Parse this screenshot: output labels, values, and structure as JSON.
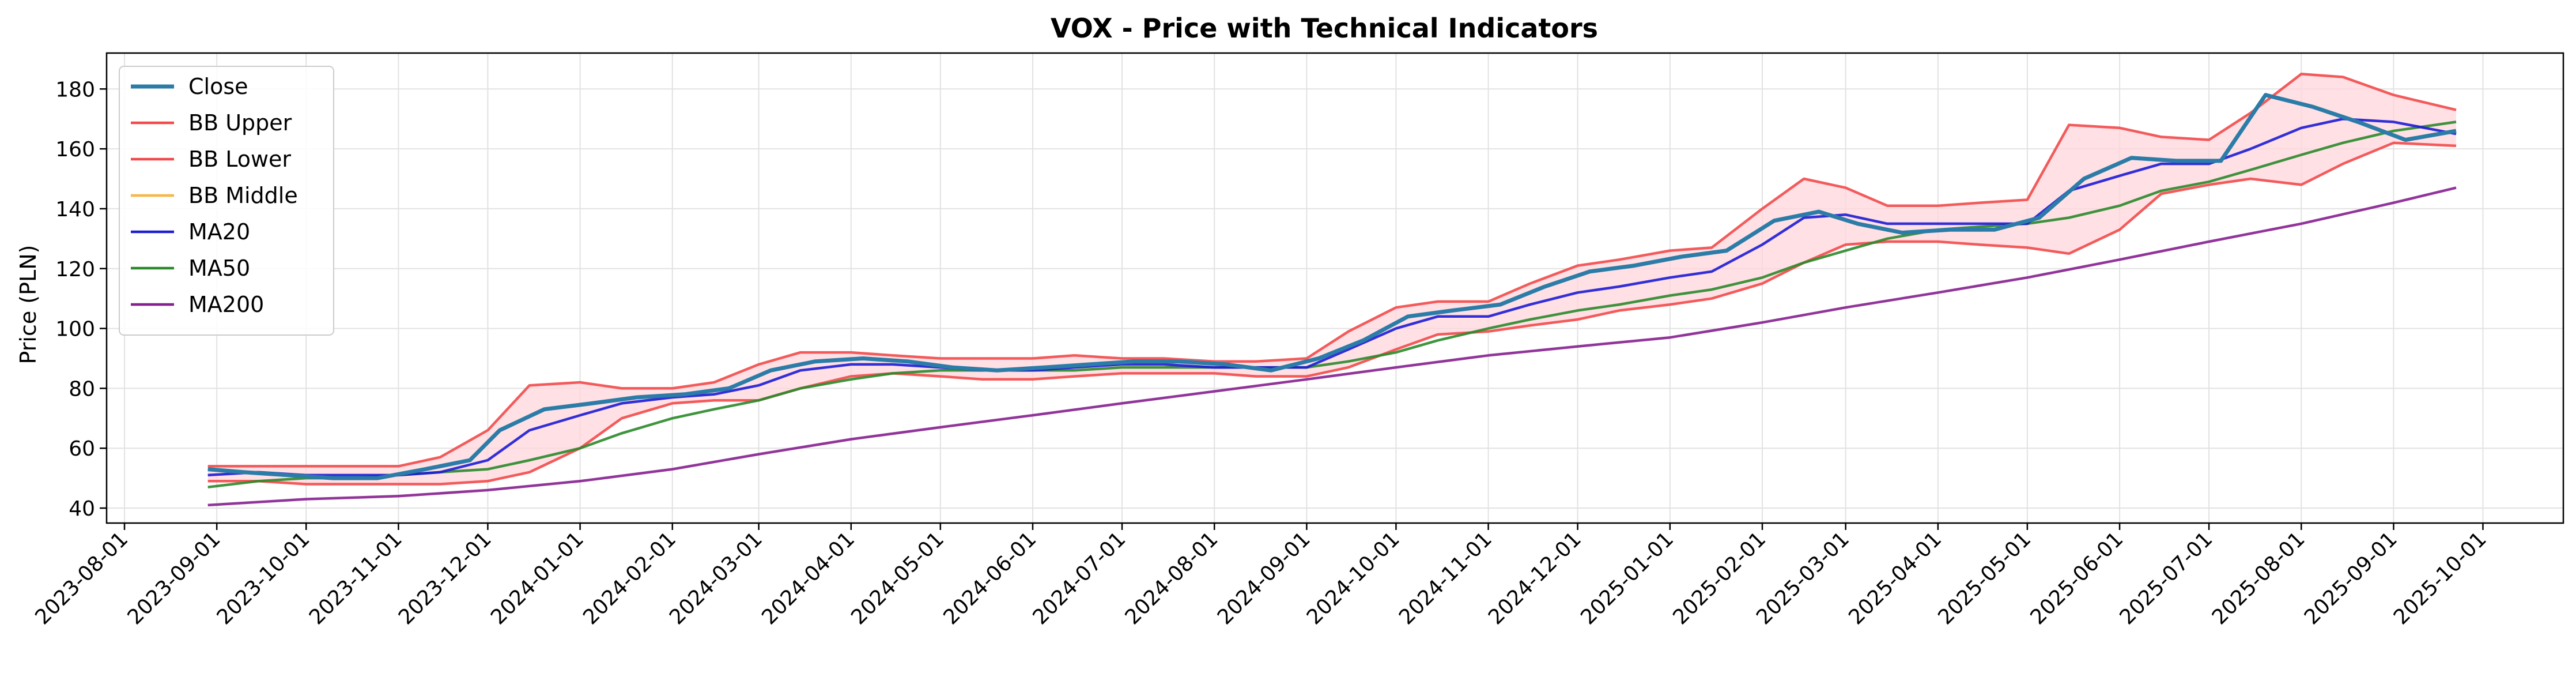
{
  "chart_data": {
    "type": "line",
    "title": "VOX - Price with Technical Indicators",
    "xlabel": "",
    "ylabel": "Price (PLN)",
    "ylim": [
      35,
      192
    ],
    "yticks": [
      40,
      60,
      80,
      100,
      120,
      140,
      160,
      180
    ],
    "xlim": [
      "2023-07-26",
      "2025-10-28"
    ],
    "xticks": [
      "2023-08-01",
      "2023-09-01",
      "2023-10-01",
      "2023-11-01",
      "2023-12-01",
      "2024-01-01",
      "2024-02-01",
      "2024-03-01",
      "2024-04-01",
      "2024-05-01",
      "2024-06-01",
      "2024-07-01",
      "2024-08-01",
      "2024-09-01",
      "2024-10-01",
      "2024-11-01",
      "2024-12-01",
      "2025-01-01",
      "2025-02-01",
      "2025-03-01",
      "2025-04-01",
      "2025-05-01",
      "2025-06-01",
      "2025-07-01",
      "2025-08-01",
      "2025-09-01",
      "2025-10-01"
    ],
    "grid": true,
    "legend_position": "top-left",
    "band_fill_color": "#ffd6dc",
    "series": [
      {
        "name": "Close",
        "color": "#2c7ca8",
        "style": "solid",
        "x": [
          "2023-08-29",
          "2023-09-10",
          "2023-09-25",
          "2023-10-10",
          "2023-10-25",
          "2023-11-10",
          "2023-11-25",
          "2023-12-05",
          "2023-12-20",
          "2024-01-05",
          "2024-01-20",
          "2024-02-05",
          "2024-02-20",
          "2024-03-05",
          "2024-03-20",
          "2024-04-05",
          "2024-04-20",
          "2024-05-05",
          "2024-05-20",
          "2024-06-05",
          "2024-06-20",
          "2024-07-05",
          "2024-07-20",
          "2024-08-05",
          "2024-08-20",
          "2024-09-05",
          "2024-09-20",
          "2024-10-05",
          "2024-10-20",
          "2024-11-05",
          "2024-11-20",
          "2024-12-05",
          "2024-12-20",
          "2025-01-05",
          "2025-01-20",
          "2025-02-05",
          "2025-02-20",
          "2025-03-05",
          "2025-03-20",
          "2025-04-05",
          "2025-04-20",
          "2025-05-05",
          "2025-05-20",
          "2025-06-05",
          "2025-06-20",
          "2025-07-05",
          "2025-07-20",
          "2025-08-05",
          "2025-08-20",
          "2025-09-05",
          "2025-09-22"
        ],
        "values": [
          53,
          52,
          51,
          50,
          50,
          53,
          56,
          66,
          73,
          75,
          77,
          78,
          80,
          86,
          89,
          90,
          89,
          87,
          86,
          87,
          88,
          89,
          89,
          88,
          86,
          90,
          96,
          104,
          106,
          108,
          114,
          119,
          121,
          124,
          126,
          136,
          139,
          135,
          132,
          133,
          133,
          137,
          150,
          157,
          156,
          156,
          178,
          174,
          169,
          163,
          166
        ]
      },
      {
        "name": "BB Upper",
        "color": "#f24a4a",
        "style": "solid",
        "x": [
          "2023-08-29",
          "2023-09-15",
          "2023-10-01",
          "2023-10-15",
          "2023-11-01",
          "2023-11-15",
          "2023-12-01",
          "2023-12-15",
          "2024-01-01",
          "2024-01-15",
          "2024-02-01",
          "2024-02-15",
          "2024-03-01",
          "2024-03-15",
          "2024-04-01",
          "2024-04-15",
          "2024-05-01",
          "2024-05-15",
          "2024-06-01",
          "2024-06-15",
          "2024-07-01",
          "2024-07-15",
          "2024-08-01",
          "2024-08-15",
          "2024-09-01",
          "2024-09-15",
          "2024-10-01",
          "2024-10-15",
          "2024-11-01",
          "2024-11-15",
          "2024-12-01",
          "2024-12-15",
          "2025-01-01",
          "2025-01-15",
          "2025-02-01",
          "2025-02-15",
          "2025-03-01",
          "2025-03-15",
          "2025-04-01",
          "2025-04-15",
          "2025-05-01",
          "2025-05-15",
          "2025-06-01",
          "2025-06-15",
          "2025-07-01",
          "2025-07-15",
          "2025-08-01",
          "2025-08-15",
          "2025-09-01",
          "2025-09-22"
        ],
        "values": [
          54,
          54,
          54,
          54,
          54,
          57,
          66,
          81,
          82,
          80,
          80,
          82,
          88,
          92,
          92,
          91,
          90,
          90,
          90,
          91,
          90,
          90,
          89,
          89,
          90,
          99,
          107,
          109,
          109,
          115,
          121,
          123,
          126,
          127,
          140,
          150,
          147,
          141,
          141,
          142,
          143,
          168,
          167,
          164,
          163,
          172,
          185,
          184,
          178,
          173
        ]
      },
      {
        "name": "BB Lower",
        "color": "#f24a4a",
        "style": "solid",
        "x": [
          "2023-08-29",
          "2023-09-15",
          "2023-10-01",
          "2023-10-15",
          "2023-11-01",
          "2023-11-15",
          "2023-12-01",
          "2023-12-15",
          "2024-01-01",
          "2024-01-15",
          "2024-02-01",
          "2024-02-15",
          "2024-03-01",
          "2024-03-15",
          "2024-04-01",
          "2024-04-15",
          "2024-05-01",
          "2024-05-15",
          "2024-06-01",
          "2024-06-15",
          "2024-07-01",
          "2024-07-15",
          "2024-08-01",
          "2024-08-15",
          "2024-09-01",
          "2024-09-15",
          "2024-10-01",
          "2024-10-15",
          "2024-11-01",
          "2024-11-15",
          "2024-12-01",
          "2024-12-15",
          "2025-01-01",
          "2025-01-15",
          "2025-02-01",
          "2025-02-15",
          "2025-03-01",
          "2025-03-15",
          "2025-04-01",
          "2025-04-15",
          "2025-05-01",
          "2025-05-15",
          "2025-06-01",
          "2025-06-15",
          "2025-07-01",
          "2025-07-15",
          "2025-08-01",
          "2025-08-15",
          "2025-09-01",
          "2025-09-22"
        ],
        "values": [
          49,
          49,
          48,
          48,
          48,
          48,
          49,
          52,
          60,
          70,
          75,
          76,
          76,
          80,
          84,
          85,
          84,
          83,
          83,
          84,
          85,
          85,
          85,
          84,
          84,
          87,
          93,
          98,
          99,
          101,
          103,
          106,
          108,
          110,
          115,
          122,
          128,
          129,
          129,
          128,
          127,
          125,
          133,
          145,
          148,
          150,
          148,
          155,
          162,
          161
        ]
      },
      {
        "name": "BB Middle",
        "color": "#f5b84a",
        "style": "solid",
        "x": [],
        "values": []
      },
      {
        "name": "MA20",
        "color": "#1c1cd6",
        "style": "solid",
        "x": [
          "2023-08-29",
          "2023-09-15",
          "2023-10-01",
          "2023-10-15",
          "2023-11-01",
          "2023-11-15",
          "2023-12-01",
          "2023-12-15",
          "2024-01-01",
          "2024-01-15",
          "2024-02-01",
          "2024-02-15",
          "2024-03-01",
          "2024-03-15",
          "2024-04-01",
          "2024-04-15",
          "2024-05-01",
          "2024-05-15",
          "2024-06-01",
          "2024-06-15",
          "2024-07-01",
          "2024-07-15",
          "2024-08-01",
          "2024-08-15",
          "2024-09-01",
          "2024-09-15",
          "2024-10-01",
          "2024-10-15",
          "2024-11-01",
          "2024-11-15",
          "2024-12-01",
          "2024-12-15",
          "2025-01-01",
          "2025-01-15",
          "2025-02-01",
          "2025-02-15",
          "2025-03-01",
          "2025-03-15",
          "2025-04-01",
          "2025-04-15",
          "2025-05-01",
          "2025-05-15",
          "2025-06-01",
          "2025-06-15",
          "2025-07-01",
          "2025-07-15",
          "2025-08-01",
          "2025-08-15",
          "2025-09-01",
          "2025-09-22"
        ],
        "values": [
          51,
          52,
          51,
          51,
          51,
          52,
          56,
          66,
          71,
          75,
          77,
          78,
          81,
          86,
          88,
          88,
          87,
          86,
          86,
          87,
          88,
          88,
          87,
          87,
          87,
          93,
          100,
          104,
          104,
          108,
          112,
          114,
          117,
          119,
          128,
          137,
          138,
          135,
          135,
          135,
          135,
          146,
          151,
          155,
          155,
          160,
          167,
          170,
          169,
          165
        ]
      },
      {
        "name": "MA50",
        "color": "#2a8a2a",
        "style": "solid",
        "x": [
          "2023-08-29",
          "2023-09-15",
          "2023-10-01",
          "2023-10-15",
          "2023-11-01",
          "2023-11-15",
          "2023-12-01",
          "2023-12-15",
          "2024-01-01",
          "2024-01-15",
          "2024-02-01",
          "2024-02-15",
          "2024-03-01",
          "2024-03-15",
          "2024-04-01",
          "2024-04-15",
          "2024-05-01",
          "2024-05-15",
          "2024-06-01",
          "2024-06-15",
          "2024-07-01",
          "2024-07-15",
          "2024-08-01",
          "2024-08-15",
          "2024-09-01",
          "2024-09-15",
          "2024-10-01",
          "2024-10-15",
          "2024-11-01",
          "2024-11-15",
          "2024-12-01",
          "2024-12-15",
          "2025-01-01",
          "2025-01-15",
          "2025-02-01",
          "2025-02-15",
          "2025-03-01",
          "2025-03-15",
          "2025-04-01",
          "2025-04-15",
          "2025-05-01",
          "2025-05-15",
          "2025-06-01",
          "2025-06-15",
          "2025-07-01",
          "2025-07-15",
          "2025-08-01",
          "2025-08-15",
          "2025-09-01",
          "2025-09-22"
        ],
        "values": [
          47,
          49,
          50,
          50,
          51,
          52,
          53,
          56,
          60,
          65,
          70,
          73,
          76,
          80,
          83,
          85,
          86,
          86,
          86,
          86,
          87,
          87,
          87,
          87,
          87,
          89,
          92,
          96,
          100,
          103,
          106,
          108,
          111,
          113,
          117,
          122,
          126,
          130,
          133,
          134,
          135,
          137,
          141,
          146,
          149,
          153,
          158,
          162,
          166,
          169
        ]
      },
      {
        "name": "MA200",
        "color": "#861f8f",
        "style": "solid",
        "x": [
          "2023-08-29",
          "2023-10-01",
          "2023-11-01",
          "2023-12-01",
          "2024-01-01",
          "2024-02-01",
          "2024-03-01",
          "2024-04-01",
          "2024-05-01",
          "2024-06-01",
          "2024-07-01",
          "2024-08-01",
          "2024-09-01",
          "2024-10-01",
          "2024-11-01",
          "2024-12-01",
          "2025-01-01",
          "2025-02-01",
          "2025-03-01",
          "2025-04-01",
          "2025-05-01",
          "2025-06-01",
          "2025-07-01",
          "2025-08-01",
          "2025-09-01",
          "2025-09-22"
        ],
        "values": [
          41,
          43,
          44,
          46,
          49,
          53,
          58,
          63,
          67,
          71,
          75,
          79,
          83,
          87,
          91,
          94,
          97,
          102,
          107,
          112,
          117,
          123,
          129,
          135,
          142,
          147
        ]
      }
    ]
  }
}
